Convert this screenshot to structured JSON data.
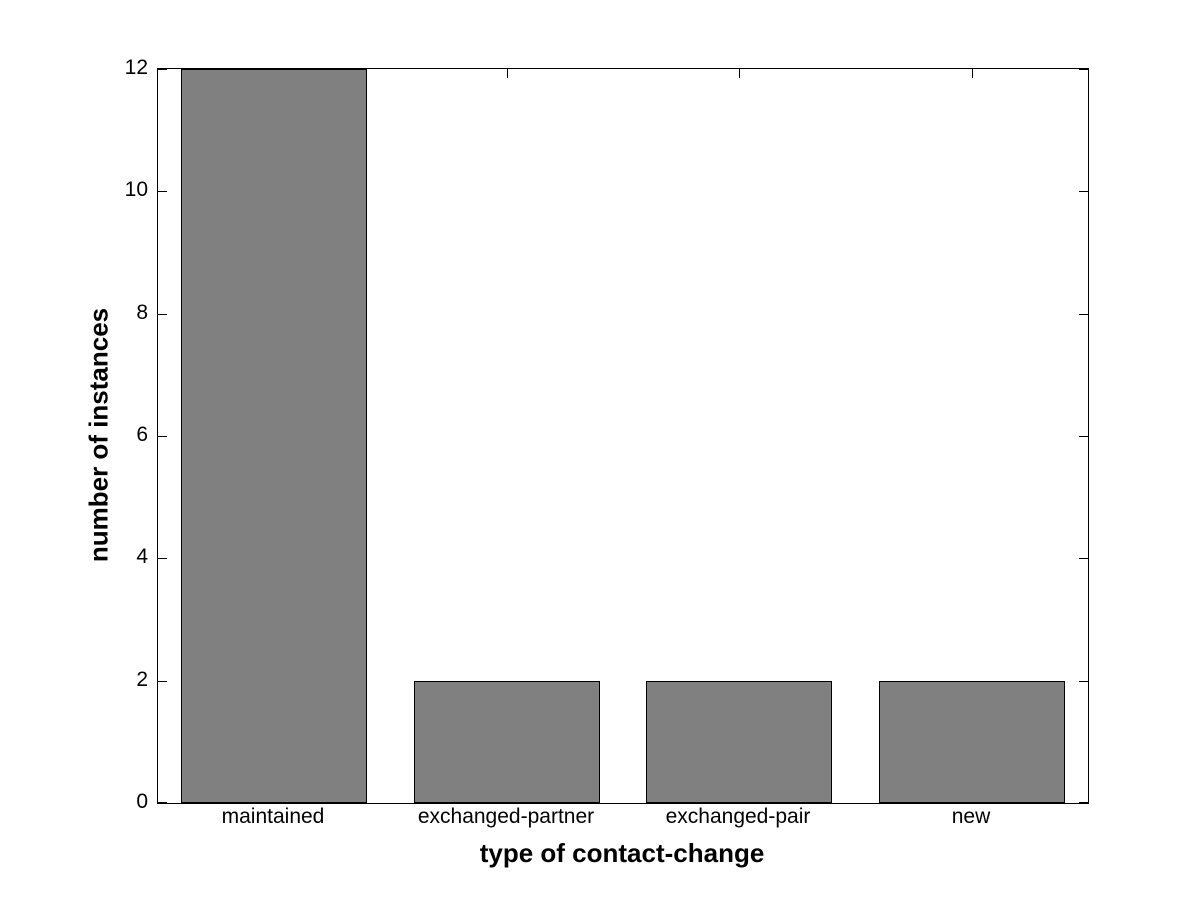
{
  "chart_data": {
    "type": "bar",
    "title": "",
    "xlabel": "type of contact-change",
    "ylabel": "number of instances",
    "categories": [
      "maintained",
      "exchanged-partner",
      "exchanged-pair",
      "new"
    ],
    "values": [
      12,
      2,
      2,
      2
    ],
    "ylim": [
      0,
      12
    ],
    "yticks": [
      0,
      2,
      4,
      6,
      8,
      10,
      12
    ],
    "ytick_labels": [
      "0",
      "2",
      "4",
      "6",
      "8",
      "10",
      "12"
    ],
    "bar_width_fraction": 0.8,
    "grid": false,
    "legend": null,
    "tick_direction": "in",
    "box": true,
    "colors": {
      "bar_fill": "#808080",
      "bar_edge": "#000000",
      "axis": "#000000",
      "text": "#000000",
      "background": "#ffffff"
    }
  }
}
